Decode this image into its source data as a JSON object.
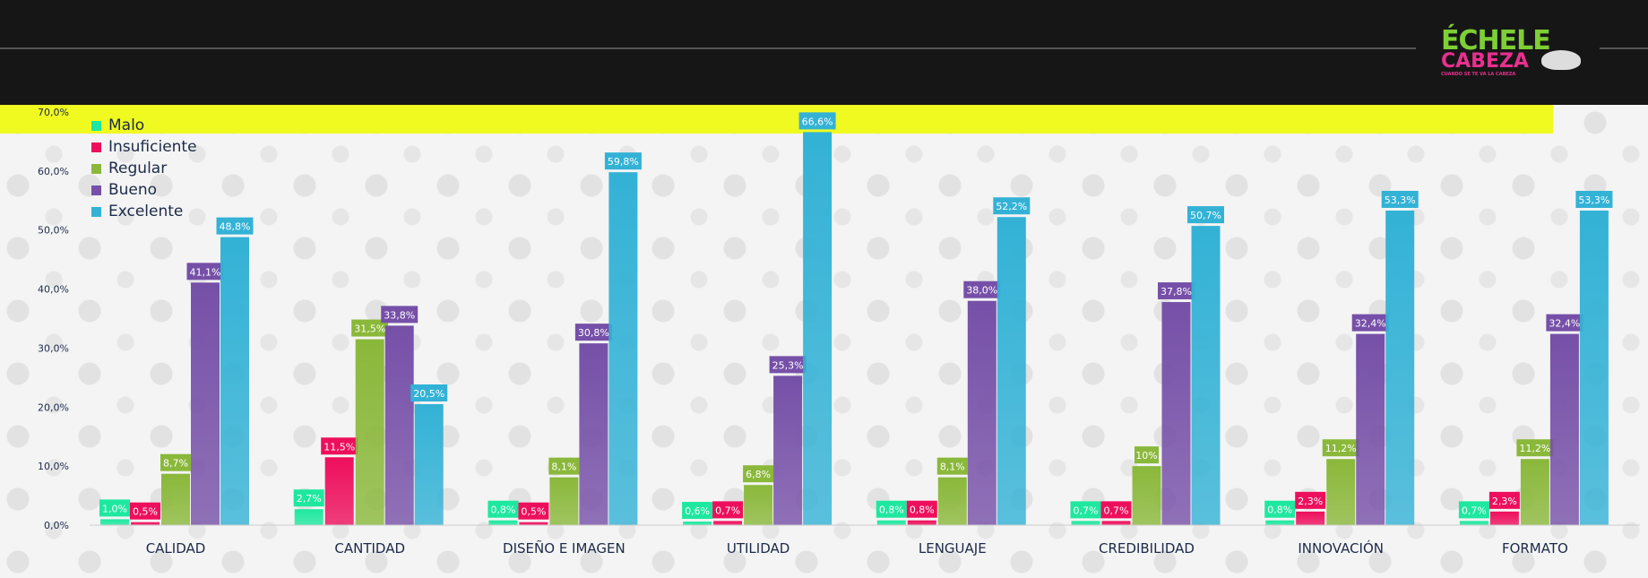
{
  "logo": {
    "line1": "ÉCHELE",
    "line2": "CABEZA",
    "line3": "CUANDO SE TE VA LA CABEZA"
  },
  "chart_data": {
    "type": "bar",
    "title": "",
    "xlabel": "",
    "ylabel": "",
    "ylim": [
      0,
      70
    ],
    "yticks": [
      "0,0%",
      "10,0%",
      "20,0%",
      "30,0%",
      "40,0%",
      "50,0%",
      "60,0%",
      "70,0%"
    ],
    "legend_position": "top-left",
    "categories": [
      "CALIDAD",
      "CANTIDAD",
      "DISEÑO E IMAGEN",
      "UTILIDAD",
      "LENGUAJE",
      "CREDIBILIDAD",
      "INNOVACIÓN",
      "FORMATO"
    ],
    "series": [
      {
        "name": "Malo",
        "color": "#1ee8a0",
        "values": [
          1.0,
          2.7,
          0.8,
          0.6,
          0.8,
          0.7,
          0.8,
          0.7
        ],
        "labels": [
          "1,0%",
          "2,7%",
          "0,8%",
          "0,6%",
          "0,8%",
          "0,7%",
          "0,8%",
          "0,7%"
        ]
      },
      {
        "name": "Insuficiente",
        "color": "#ee0f5c",
        "values": [
          0.5,
          11.5,
          0.5,
          0.7,
          0.8,
          0.7,
          2.3,
          2.3
        ],
        "labels": [
          "0,5%",
          "11,5%",
          "0,5%",
          "0,7%",
          "0,8%",
          "0,7%",
          "2,3%",
          "2,3%"
        ]
      },
      {
        "name": "Regular",
        "color": "#8ab83a",
        "values": [
          8.7,
          31.5,
          8.1,
          6.8,
          8.1,
          10,
          11.2,
          11.2
        ],
        "labels": [
          "8,7%",
          "31,5%",
          "8,1%",
          "6,8%",
          "8,1%",
          "10%",
          "11,2%",
          "11,2%"
        ]
      },
      {
        "name": "Bueno",
        "color": "#7650a8",
        "values": [
          41.1,
          33.8,
          30.8,
          25.3,
          38.0,
          37.8,
          32.4,
          32.4
        ],
        "labels": [
          "41,1%",
          "33,8%",
          "30,8%",
          "25,3%",
          "38,0%",
          "37,8%",
          "32,4%",
          "32,4%"
        ]
      },
      {
        "name": "Excelente",
        "color": "#33b2d6",
        "values": [
          48.8,
          20.5,
          59.8,
          66.6,
          52.2,
          50.7,
          53.3,
          53.3
        ],
        "labels": [
          "48,8%",
          "20,5%",
          "59,8%",
          "66,6%",
          "52,2%",
          "50,7%",
          "53,3%",
          "53,3%"
        ]
      }
    ]
  }
}
